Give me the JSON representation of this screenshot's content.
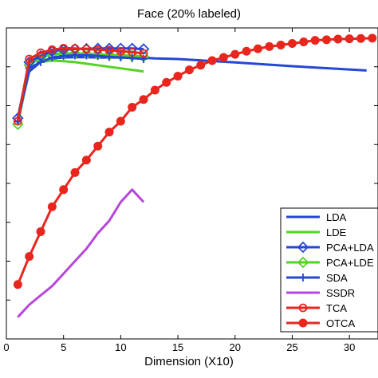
{
  "chart_data": {
    "type": "line",
    "title": "Face (20% labeled)",
    "xlabel": "Dimension (X10)",
    "ylabel": "",
    "xlim": [
      0,
      32.5
    ],
    "ylim": [
      0,
      1
    ],
    "xticks": [
      0,
      5,
      10,
      15,
      20,
      25,
      30
    ],
    "yticks": [
      0.125,
      0.25,
      0.375,
      0.5,
      0.625,
      0.75,
      0.875
    ],
    "grid": false,
    "legend_position": "bottom-right",
    "series": [
      {
        "name": "LDA",
        "color": "#2547d6",
        "marker": "none",
        "x": [
          1,
          2,
          3,
          4,
          5,
          6,
          7,
          8,
          9,
          10,
          11,
          12,
          13,
          14,
          15,
          20,
          25,
          31.5
        ],
        "y": [
          0.7,
          0.86,
          0.89,
          0.902,
          0.905,
          0.906,
          0.906,
          0.905,
          0.905,
          0.905,
          0.905,
          0.904,
          0.902,
          0.901,
          0.9,
          0.889,
          0.877,
          0.863
        ]
      },
      {
        "name": "LDE",
        "color": "#52d424",
        "marker": "none",
        "x": [
          1,
          2,
          3,
          4,
          5,
          6,
          7,
          8,
          9,
          10,
          11,
          12
        ],
        "y": [
          0.69,
          0.87,
          0.89,
          0.895,
          0.893,
          0.89,
          0.885,
          0.88,
          0.875,
          0.87,
          0.865,
          0.86
        ]
      },
      {
        "name": "PCA+LDA",
        "color": "#2547d6",
        "marker": "diamond",
        "x": [
          1,
          2,
          3,
          4,
          5,
          6,
          7,
          8,
          9,
          10,
          11,
          12
        ],
        "y": [
          0.71,
          0.89,
          0.91,
          0.925,
          0.93,
          0.932,
          0.933,
          0.934,
          0.934,
          0.934,
          0.934,
          0.932
        ]
      },
      {
        "name": "PCA+LDE",
        "color": "#52d424",
        "marker": "diamond",
        "x": [
          1,
          2,
          3,
          4,
          5,
          6,
          7,
          8,
          9,
          10,
          11,
          12
        ],
        "y": [
          0.69,
          0.88,
          0.905,
          0.915,
          0.918,
          0.918,
          0.917,
          0.915,
          0.913,
          0.912,
          0.91,
          0.908
        ]
      },
      {
        "name": "SDA",
        "color": "#2547d6",
        "marker": "plus",
        "x": [
          1,
          2,
          3,
          4,
          5,
          6,
          7,
          8,
          9,
          10,
          11,
          12
        ],
        "y": [
          0.7,
          0.87,
          0.89,
          0.905,
          0.91,
          0.912,
          0.912,
          0.91,
          0.907,
          0.905,
          0.903,
          0.9
        ]
      },
      {
        "name": "SSDR",
        "color": "#b646dc",
        "marker": "none",
        "x": [
          1,
          2,
          3,
          4,
          5,
          6,
          7,
          8,
          9,
          10,
          11,
          12
        ],
        "y": [
          0.07,
          0.11,
          0.14,
          0.17,
          0.21,
          0.25,
          0.29,
          0.34,
          0.38,
          0.44,
          0.48,
          0.44
        ]
      },
      {
        "name": "TCA",
        "color": "#e8261e",
        "marker": "circle-open",
        "x": [
          1,
          2,
          3,
          4,
          5,
          6,
          7,
          8,
          9,
          10,
          11,
          12
        ],
        "y": [
          0.7,
          0.9,
          0.92,
          0.93,
          0.935,
          0.934,
          0.932,
          0.93,
          0.928,
          0.925,
          0.922,
          0.918
        ]
      },
      {
        "name": "OTCA",
        "color": "#e8261e",
        "marker": "circle-filled",
        "x": [
          1,
          2,
          3,
          4,
          5,
          6,
          7,
          8,
          9,
          10,
          11,
          12,
          13,
          14,
          15,
          16,
          17,
          18,
          19,
          20,
          21,
          22,
          23,
          24,
          25,
          26,
          27,
          28,
          29,
          30,
          31,
          32
        ],
        "y": [
          0.175,
          0.265,
          0.345,
          0.425,
          0.48,
          0.535,
          0.575,
          0.62,
          0.665,
          0.7,
          0.745,
          0.77,
          0.8,
          0.825,
          0.845,
          0.865,
          0.88,
          0.895,
          0.905,
          0.915,
          0.925,
          0.933,
          0.94,
          0.945,
          0.95,
          0.955,
          0.96,
          0.962,
          0.964,
          0.965,
          0.966,
          0.967
        ]
      }
    ]
  }
}
